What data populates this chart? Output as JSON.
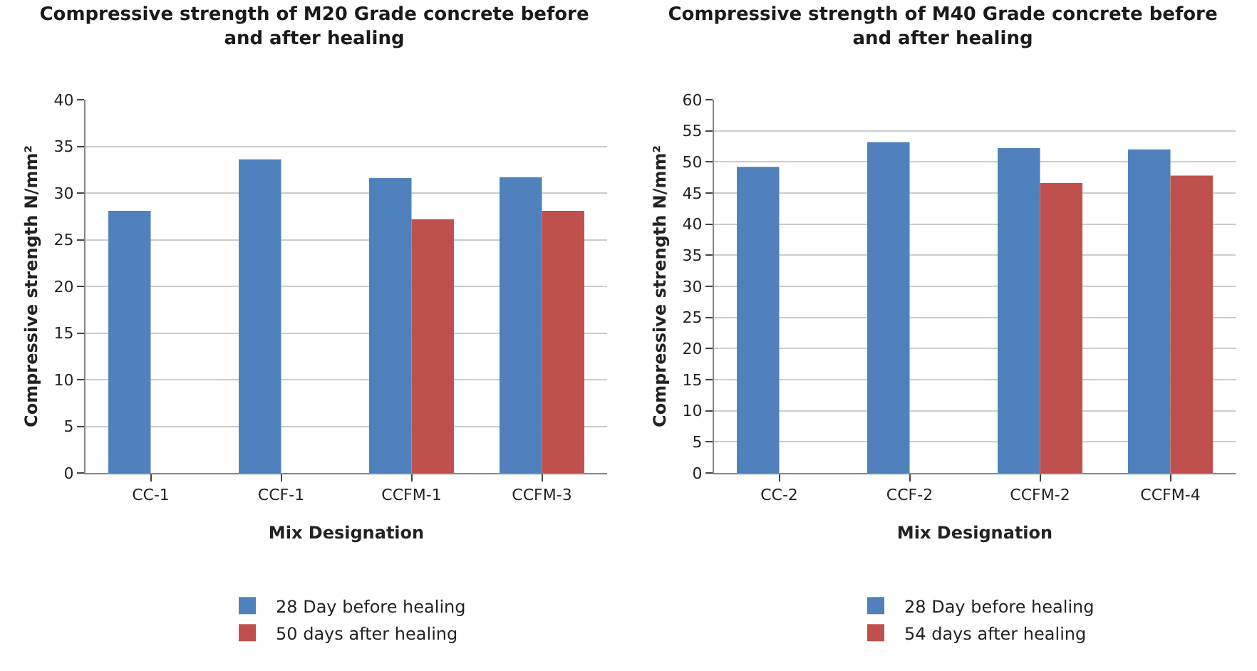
{
  "chart_data": [
    {
      "type": "bar",
      "title": "Compressive strength of M20 Grade concrete before and after healing",
      "xlabel": "Mix Designation",
      "ylabel": "Compressive strength N/mm²",
      "categories": [
        "CC-1",
        "CCF-1",
        "CCFM-1",
        "CCFM-3"
      ],
      "series": [
        {
          "name": "28 Day before healing",
          "color": "#4f81bd",
          "values": [
            28.1,
            33.6,
            31.6,
            31.7
          ]
        },
        {
          "name": "50 days after healing",
          "color": "#c0504d",
          "values": [
            null,
            null,
            27.2,
            28.1
          ]
        }
      ],
      "ylim": [
        0,
        40
      ],
      "yticks": [
        0,
        5,
        10,
        15,
        20,
        25,
        30,
        35,
        40
      ],
      "grid": "y",
      "legend": "bottom"
    },
    {
      "type": "bar",
      "title": "Compressive strength of M40 Grade concrete before and after healing",
      "xlabel": "Mix Designation",
      "ylabel": "Compressive strength N/mm²",
      "categories": [
        "CC-2",
        "CCF-2",
        "CCFM-2",
        "CCFM-4"
      ],
      "series": [
        {
          "name": "28 Day before healing",
          "color": "#4f81bd",
          "values": [
            49.2,
            53.2,
            52.2,
            52.0
          ]
        },
        {
          "name": "54 days after healing",
          "color": "#c0504d",
          "values": [
            null,
            null,
            46.6,
            47.8
          ]
        }
      ],
      "ylim": [
        0,
        60
      ],
      "yticks": [
        0,
        5,
        10,
        15,
        20,
        25,
        30,
        35,
        40,
        45,
        50,
        55,
        60
      ],
      "grid": "y",
      "legend": "bottom"
    }
  ]
}
